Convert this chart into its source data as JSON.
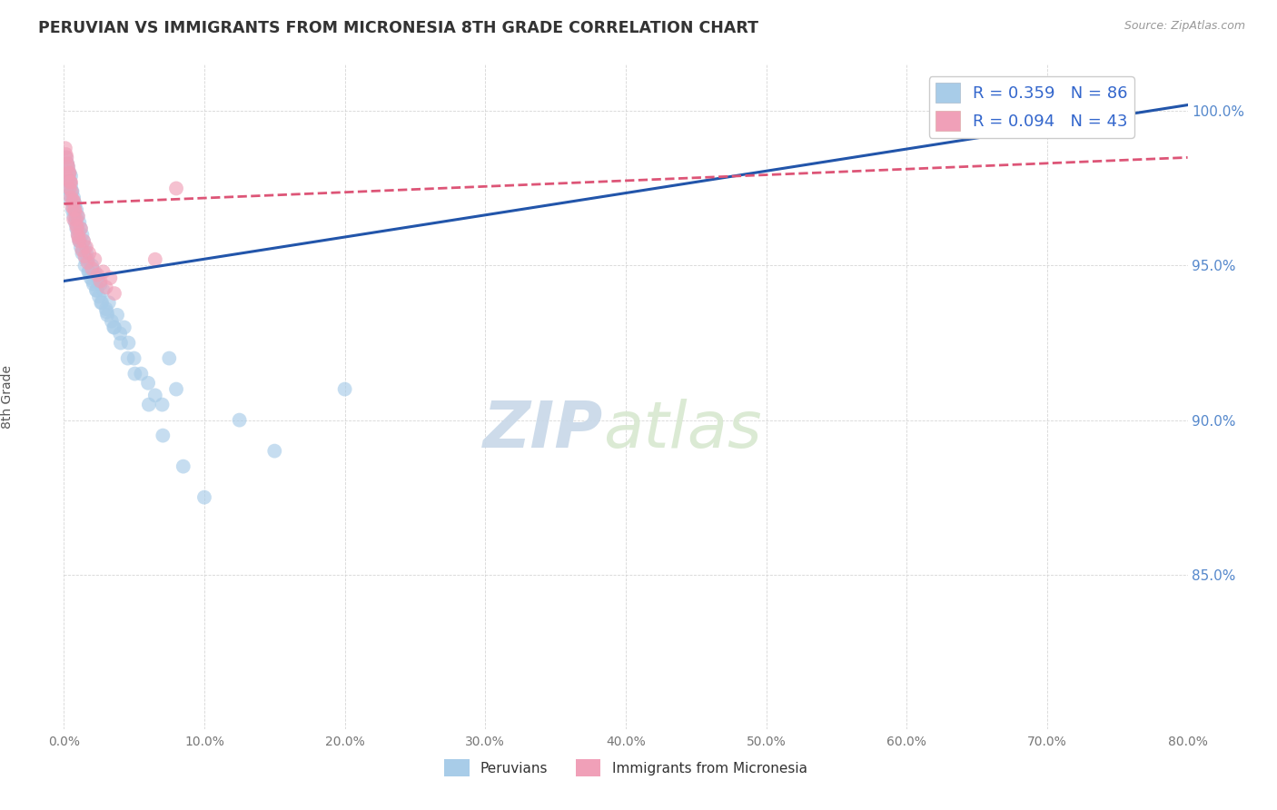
{
  "title": "PERUVIAN VS IMMIGRANTS FROM MICRONESIA 8TH GRADE CORRELATION CHART",
  "source": "Source: ZipAtlas.com",
  "ylabel": "8th Grade",
  "xlim": [
    0.0,
    80.0
  ],
  "ylim": [
    80.0,
    101.5
  ],
  "yticks": [
    85.0,
    90.0,
    95.0,
    100.0
  ],
  "xticks": [
    0.0,
    10.0,
    20.0,
    30.0,
    40.0,
    50.0,
    60.0,
    70.0,
    80.0
  ],
  "blue_color": "#a8cce8",
  "pink_color": "#f0a0b8",
  "blue_line_color": "#2255aa",
  "pink_line_color": "#dd5577",
  "R_blue": 0.359,
  "N_blue": 86,
  "R_pink": 0.094,
  "N_pink": 43,
  "legend_label_blue": "Peruvians",
  "legend_label_pink": "Immigrants from Micronesia",
  "watermark_zip": "ZIP",
  "watermark_atlas": "atlas",
  "blue_x": [
    0.2,
    0.3,
    0.3,
    0.4,
    0.4,
    0.5,
    0.5,
    0.5,
    0.6,
    0.6,
    0.7,
    0.7,
    0.8,
    0.8,
    0.9,
    0.9,
    1.0,
    1.0,
    1.1,
    1.1,
    1.2,
    1.2,
    1.3,
    1.3,
    1.4,
    1.5,
    1.5,
    1.6,
    1.7,
    1.8,
    1.9,
    2.0,
    2.1,
    2.2,
    2.3,
    2.4,
    2.5,
    2.6,
    2.7,
    2.8,
    3.0,
    3.1,
    3.2,
    3.4,
    3.6,
    3.8,
    4.0,
    4.3,
    4.6,
    5.0,
    5.5,
    6.0,
    6.5,
    7.0,
    7.5,
    8.0,
    0.15,
    0.25,
    0.35,
    0.45,
    0.55,
    0.65,
    0.75,
    0.85,
    0.95,
    1.05,
    1.15,
    1.35,
    1.55,
    1.75,
    2.05,
    2.35,
    2.65,
    3.05,
    3.55,
    4.05,
    4.55,
    5.05,
    6.05,
    7.05,
    8.5,
    10.0,
    12.5,
    15.0,
    20.0,
    75.0
  ],
  "blue_y": [
    97.8,
    98.2,
    97.5,
    98.0,
    97.3,
    97.6,
    97.1,
    97.9,
    97.4,
    96.8,
    97.2,
    96.6,
    97.0,
    96.4,
    96.8,
    96.2,
    96.6,
    96.0,
    96.4,
    95.8,
    96.2,
    95.6,
    96.0,
    95.4,
    95.8,
    95.6,
    95.0,
    95.4,
    95.2,
    94.8,
    94.6,
    95.0,
    94.4,
    94.8,
    94.2,
    94.6,
    94.0,
    94.4,
    93.8,
    94.2,
    93.6,
    93.4,
    93.8,
    93.2,
    93.0,
    93.4,
    92.8,
    93.0,
    92.5,
    92.0,
    91.5,
    91.2,
    90.8,
    90.5,
    92.0,
    91.0,
    98.5,
    98.3,
    97.9,
    97.7,
    97.4,
    97.1,
    96.9,
    96.6,
    96.3,
    96.1,
    95.8,
    95.5,
    95.2,
    94.8,
    94.5,
    94.2,
    93.8,
    93.5,
    93.0,
    92.5,
    92.0,
    91.5,
    90.5,
    89.5,
    88.5,
    87.5,
    90.0,
    89.0,
    91.0,
    100.2
  ],
  "pink_x": [
    0.1,
    0.2,
    0.3,
    0.3,
    0.4,
    0.4,
    0.5,
    0.5,
    0.6,
    0.7,
    0.7,
    0.8,
    0.9,
    1.0,
    1.0,
    1.1,
    1.2,
    1.3,
    1.4,
    1.5,
    1.6,
    1.7,
    1.8,
    2.0,
    2.2,
    2.4,
    2.6,
    2.8,
    3.0,
    3.3,
    3.6,
    0.15,
    0.25,
    0.35,
    0.45,
    0.55,
    0.65,
    0.75,
    0.85,
    0.95,
    1.05,
    6.5,
    8.0
  ],
  "pink_y": [
    98.8,
    98.5,
    98.2,
    97.8,
    97.5,
    98.0,
    97.2,
    97.7,
    96.9,
    97.1,
    96.5,
    96.8,
    96.3,
    96.0,
    96.6,
    95.8,
    96.2,
    95.5,
    95.8,
    95.3,
    95.6,
    95.1,
    95.4,
    94.9,
    95.2,
    94.7,
    94.5,
    94.8,
    94.3,
    94.6,
    94.1,
    98.6,
    98.3,
    98.0,
    97.7,
    97.4,
    97.1,
    96.8,
    96.5,
    96.2,
    95.9,
    95.2,
    97.5
  ],
  "blue_line_x0": 0.0,
  "blue_line_y0": 94.5,
  "blue_line_x1": 80.0,
  "blue_line_y1": 100.2,
  "pink_line_x0": 0.0,
  "pink_line_y0": 97.0,
  "pink_line_x1": 80.0,
  "pink_line_y1": 98.5
}
